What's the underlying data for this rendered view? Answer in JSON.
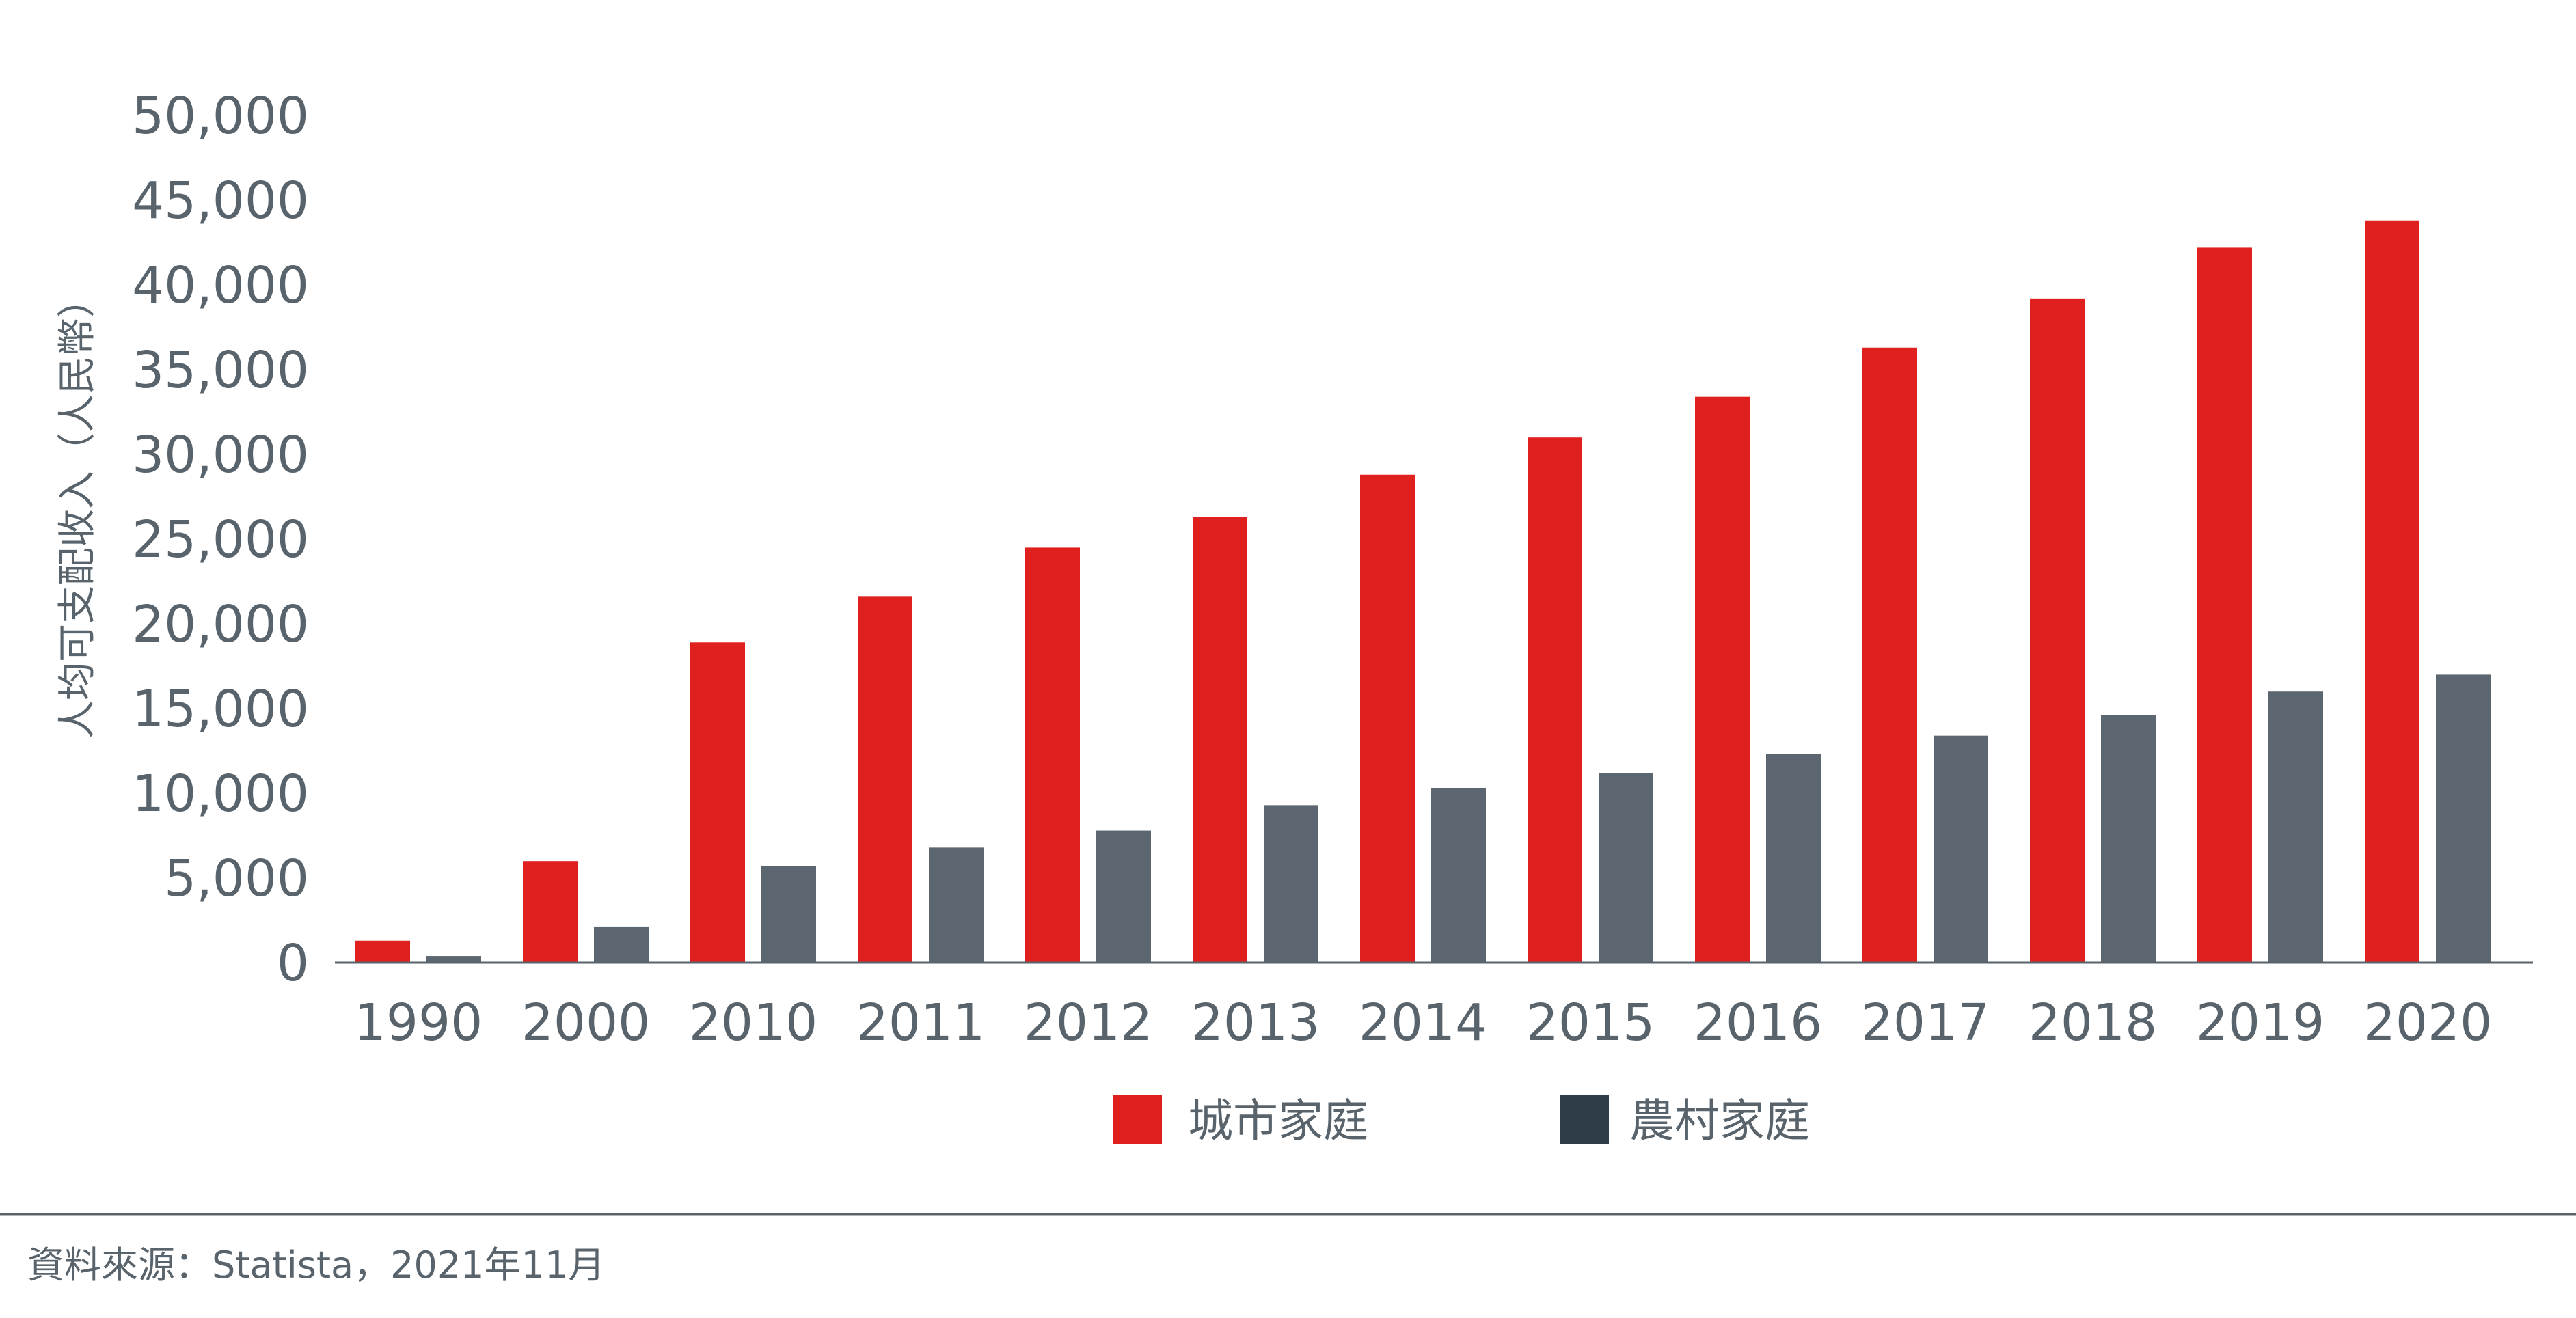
{
  "chart_data": {
    "type": "bar",
    "title": "",
    "xlabel": "",
    "ylabel": "人均可支配收入（人民幣）",
    "ylim": [
      0,
      50000
    ],
    "yticks": [
      0,
      5000,
      10000,
      15000,
      20000,
      25000,
      30000,
      35000,
      40000,
      45000,
      50000
    ],
    "ytick_labels": [
      "0",
      "5,000",
      "10,000",
      "15,000",
      "20,000",
      "25,000",
      "30,000",
      "35,000",
      "40,000",
      "45,000",
      "50,000"
    ],
    "categories": [
      "1990",
      "2000",
      "2010",
      "2011",
      "2012",
      "2013",
      "2014",
      "2015",
      "2016",
      "2017",
      "2018",
      "2019",
      "2020"
    ],
    "series": [
      {
        "name": "城市家庭",
        "color": "#e0201f",
        "values": [
          1300,
          6000,
          18900,
          21600,
          24500,
          26300,
          28800,
          31000,
          33400,
          36300,
          39200,
          42200,
          43800
        ]
      },
      {
        "name": "農村家庭",
        "color": "#5c6670",
        "values": [
          400,
          2100,
          5700,
          6800,
          7800,
          9300,
          10300,
          11200,
          12300,
          13400,
          14600,
          16000,
          17000
        ]
      }
    ],
    "legend_swatch_colors": [
      "#e0201f",
      "#2e3d47"
    ],
    "legend_position": "bottom-center",
    "grid": false
  },
  "footer": {
    "source": "資料來源：Statista，2021年11月"
  }
}
